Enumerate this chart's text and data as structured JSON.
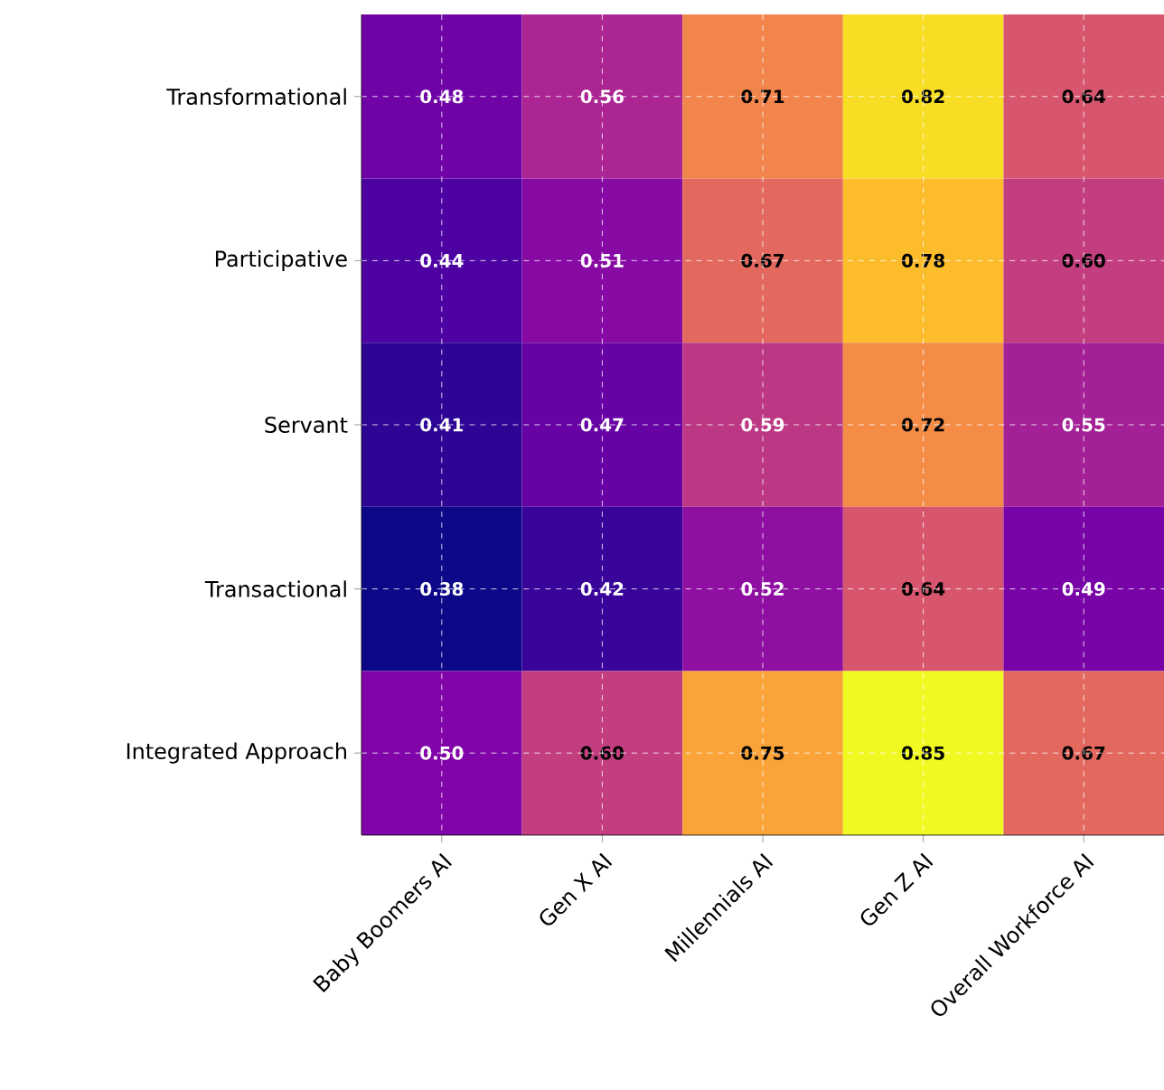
{
  "chart_data": {
    "type": "heatmap",
    "categories": [
      "Baby Boomers AI",
      "Gen X AI",
      "Millennials AI",
      "Gen Z AI",
      "Overall Workforce AI"
    ],
    "y_categories": [
      "Transformational",
      "Participative",
      "Servant",
      "Transactional",
      "Integrated Approach"
    ],
    "cells": [
      [
        0.48,
        0.56,
        0.71,
        0.82,
        0.64
      ],
      [
        0.44,
        0.51,
        0.67,
        0.78,
        0.6
      ],
      [
        0.41,
        0.47,
        0.59,
        0.72,
        0.55
      ],
      [
        0.38,
        0.42,
        0.52,
        0.64,
        0.49
      ],
      [
        0.5,
        0.6,
        0.75,
        0.85,
        0.67
      ]
    ],
    "cell_labels": [
      [
        "0.48",
        "0.56",
        "0.71",
        "0.82",
        "0.64"
      ],
      [
        "0.44",
        "0.51",
        "0.67",
        "0.78",
        "0.60"
      ],
      [
        "0.41",
        "0.47",
        "0.59",
        "0.72",
        "0.55"
      ],
      [
        "0.38",
        "0.42",
        "0.52",
        "0.64",
        "0.49"
      ],
      [
        "0.50",
        "0.60",
        "0.75",
        "0.85",
        "0.67"
      ]
    ],
    "grid": true,
    "data_labels": true
  }
}
